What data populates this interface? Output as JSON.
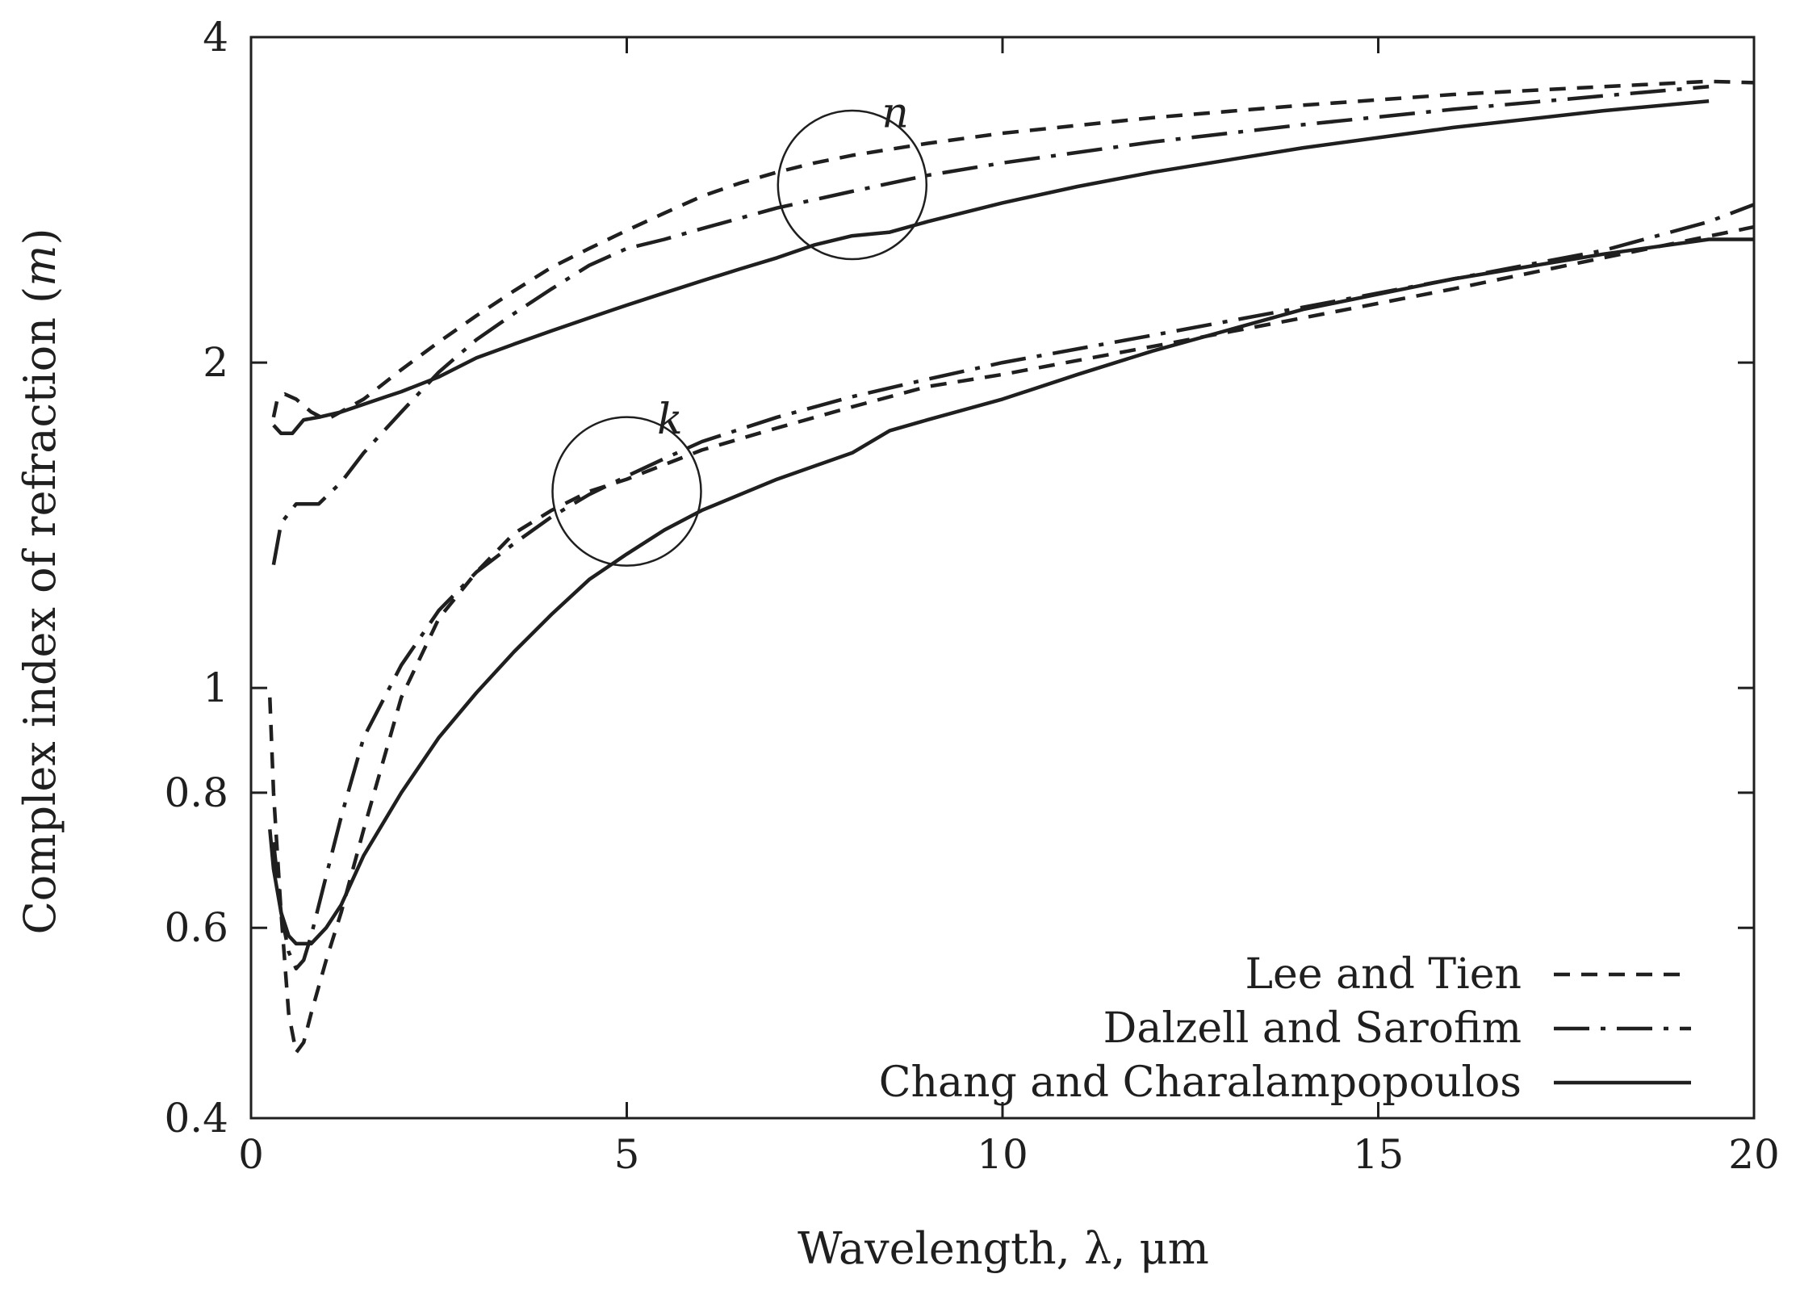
{
  "chart_data": {
    "type": "line",
    "title": "",
    "xlabel": "Wavelength, λ, μm",
    "ylabel_prefix": "Complex index of refraction (",
    "ylabel_var": "m",
    "ylabel_suffix": ")",
    "xlim": [
      0,
      20
    ],
    "ylim": [
      0.4,
      4
    ],
    "yscale": "log",
    "xticks": [
      0,
      5,
      10,
      15,
      20
    ],
    "yticks": [
      0.4,
      0.6,
      0.8,
      1,
      2,
      4
    ],
    "xtick_labels": [
      "0",
      "5",
      "10",
      "15",
      "20"
    ],
    "ytick_labels": [
      "0.4",
      "0.6",
      "0.8",
      "1",
      "2",
      "4"
    ],
    "grid": false,
    "legend_position": "bottom-right",
    "annotations": [
      {
        "label": "n",
        "target_x": 8.0,
        "target_y": 2.92
      },
      {
        "label": "k",
        "target_x": 5.0,
        "target_y": 1.52
      }
    ],
    "series": [
      {
        "name": "Lee and Tien",
        "component": "n",
        "style": "dashed",
        "x": [
          0.3,
          0.35,
          0.45,
          0.6,
          0.8,
          1.0,
          1.5,
          2.0,
          2.5,
          3.0,
          3.5,
          4.0,
          4.5,
          5.0,
          5.5,
          6.0,
          6.5,
          7.0,
          7.5,
          8.0,
          9.0,
          10.0,
          12.0,
          14.0,
          16.0,
          18.0,
          19.4,
          20.0
        ],
        "values": [
          1.78,
          1.85,
          1.87,
          1.85,
          1.8,
          1.77,
          1.85,
          1.97,
          2.09,
          2.21,
          2.33,
          2.45,
          2.55,
          2.65,
          2.75,
          2.85,
          2.93,
          3.0,
          3.06,
          3.11,
          3.19,
          3.26,
          3.37,
          3.46,
          3.54,
          3.6,
          3.64,
          3.63
        ]
      },
      {
        "name": "Dalzell and Sarofim",
        "component": "n",
        "style": "dashdot",
        "x": [
          0.3,
          0.4,
          0.6,
          0.9,
          1.2,
          1.5,
          2.0,
          2.5,
          3.0,
          3.5,
          4.0,
          4.5,
          5.0,
          5.5,
          6.0,
          7.0,
          8.0,
          9.0,
          10.0,
          12.0,
          14.0,
          16.0,
          18.0,
          19.4
        ],
        "values": [
          1.3,
          1.42,
          1.48,
          1.48,
          1.55,
          1.65,
          1.8,
          1.96,
          2.1,
          2.22,
          2.34,
          2.46,
          2.55,
          2.6,
          2.66,
          2.78,
          2.88,
          2.98,
          3.06,
          3.2,
          3.32,
          3.43,
          3.53,
          3.6
        ]
      },
      {
        "name": "Chang and Charalampopoulos",
        "component": "n",
        "style": "solid",
        "x": [
          0.3,
          0.4,
          0.55,
          0.7,
          0.9,
          1.2,
          1.5,
          1.8,
          2.0,
          2.5,
          3.0,
          3.5,
          4.0,
          4.5,
          5.0,
          5.5,
          6.0,
          6.5,
          7.0,
          7.5,
          8.0,
          8.5,
          9.0,
          10.0,
          11.0,
          12.0,
          14.0,
          16.0,
          18.0,
          19.4
        ],
        "values": [
          1.75,
          1.72,
          1.72,
          1.77,
          1.78,
          1.8,
          1.83,
          1.86,
          1.88,
          1.94,
          2.02,
          2.08,
          2.14,
          2.2,
          2.26,
          2.32,
          2.38,
          2.44,
          2.5,
          2.57,
          2.62,
          2.64,
          2.7,
          2.81,
          2.91,
          3.0,
          3.16,
          3.3,
          3.42,
          3.49
        ]
      },
      {
        "name": "Lee and Tien",
        "component": "k",
        "style": "dashed",
        "x": [
          0.25,
          0.3,
          0.4,
          0.5,
          0.6,
          0.7,
          0.8,
          1.0,
          1.2,
          1.5,
          2.0,
          2.5,
          3.0,
          3.5,
          4.0,
          4.5,
          5.0,
          6.0,
          7.0,
          8.0,
          9.0,
          10.0,
          12.0,
          14.0,
          16.0,
          18.0,
          20.0
        ],
        "values": [
          0.98,
          0.8,
          0.62,
          0.5,
          0.46,
          0.47,
          0.5,
          0.56,
          0.62,
          0.74,
          0.98,
          1.16,
          1.28,
          1.39,
          1.46,
          1.52,
          1.56,
          1.66,
          1.74,
          1.82,
          1.9,
          1.95,
          2.07,
          2.2,
          2.34,
          2.5,
          2.67
        ]
      },
      {
        "name": "Dalzell and Sarofim",
        "component": "k",
        "style": "dashdot",
        "x": [
          0.3,
          0.4,
          0.5,
          0.6,
          0.7,
          0.8,
          1.0,
          1.2,
          1.5,
          2.0,
          2.5,
          3.0,
          3.5,
          4.0,
          4.5,
          5.0,
          5.5,
          6.0,
          7.0,
          8.0,
          9.0,
          10.0,
          12.0,
          14.0,
          16.0,
          18.0,
          19.4,
          20.0
        ],
        "values": [
          0.72,
          0.62,
          0.57,
          0.55,
          0.56,
          0.59,
          0.67,
          0.76,
          0.9,
          1.05,
          1.18,
          1.28,
          1.36,
          1.44,
          1.51,
          1.57,
          1.63,
          1.69,
          1.78,
          1.86,
          1.93,
          2.0,
          2.12,
          2.25,
          2.39,
          2.54,
          2.7,
          2.8
        ]
      },
      {
        "name": "Chang and Charalampopoulos",
        "component": "k",
        "style": "solid",
        "x": [
          0.25,
          0.3,
          0.4,
          0.5,
          0.6,
          0.7,
          0.8,
          1.0,
          1.2,
          1.5,
          2.0,
          2.5,
          3.0,
          3.5,
          4.0,
          4.5,
          5.0,
          5.5,
          6.0,
          7.0,
          8.0,
          8.5,
          9.0,
          10.0,
          11.0,
          12.0,
          14.0,
          16.0,
          18.0,
          19.4,
          20.0
        ],
        "values": [
          0.74,
          0.68,
          0.62,
          0.59,
          0.58,
          0.58,
          0.58,
          0.6,
          0.63,
          0.7,
          0.8,
          0.9,
          0.99,
          1.08,
          1.17,
          1.26,
          1.33,
          1.4,
          1.46,
          1.56,
          1.65,
          1.73,
          1.77,
          1.85,
          1.95,
          2.05,
          2.24,
          2.39,
          2.52,
          2.6,
          2.6
        ]
      }
    ]
  }
}
